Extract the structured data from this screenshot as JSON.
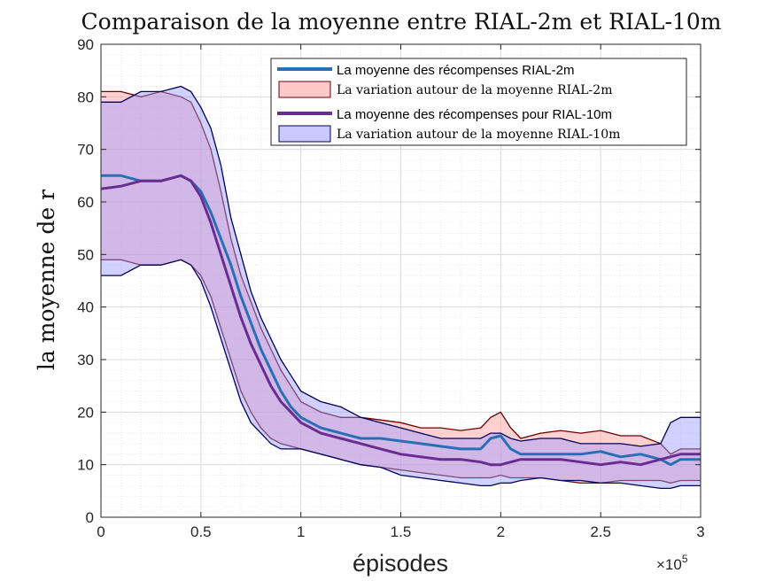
{
  "chart_data": {
    "type": "area",
    "title": "Comparaison de la moyenne entre RIAL-2m et RIAL-10m",
    "xlabel": "épisodes",
    "ylabel": "la moyenne de r",
    "x_exponent_label": {
      "base": "×10",
      "exp": "5"
    },
    "xlim": [
      0,
      300000
    ],
    "ylim": [
      0,
      90
    ],
    "xticks": [
      0,
      50000,
      100000,
      150000,
      200000,
      250000,
      300000
    ],
    "xtick_labels": [
      "0",
      "0.5",
      "1",
      "1.5",
      "2",
      "2.5",
      "3"
    ],
    "yticks": [
      0,
      10,
      20,
      30,
      40,
      50,
      60,
      70,
      80,
      90
    ],
    "ytick_labels": [
      "0",
      "10",
      "20",
      "30",
      "40",
      "50",
      "60",
      "70",
      "80",
      "90"
    ],
    "grid": true,
    "minor_grid": true,
    "legend_position": "top-right",
    "x": [
      0,
      10000,
      20000,
      30000,
      40000,
      45000,
      50000,
      55000,
      60000,
      65000,
      70000,
      75000,
      80000,
      85000,
      90000,
      95000,
      100000,
      110000,
      120000,
      130000,
      140000,
      150000,
      160000,
      170000,
      180000,
      190000,
      195000,
      200000,
      205000,
      210000,
      220000,
      230000,
      240000,
      250000,
      260000,
      270000,
      280000,
      285000,
      290000,
      300000
    ],
    "series": [
      {
        "name": "La moyenne des récompenses RIAL-2m",
        "kind": "line",
        "color": "#2a6fb5",
        "values": [
          65,
          65,
          64,
          64,
          65,
          64,
          62,
          58,
          53,
          48,
          42,
          37,
          32,
          28,
          24,
          21,
          19,
          17,
          16,
          15,
          15,
          14.5,
          14,
          13.5,
          13,
          13,
          15,
          15.5,
          13,
          12,
          12,
          12,
          12,
          12.5,
          11.5,
          12,
          11,
          10,
          11,
          11
        ]
      },
      {
        "name": "La variation autour de la moyenne RIAL-2m",
        "kind": "band",
        "color": "#ff9999",
        "edge": "#6a0000",
        "upper": [
          81,
          81,
          80,
          81,
          80,
          79,
          75,
          70,
          62,
          53,
          46,
          41,
          36,
          32,
          28,
          25,
          22,
          20,
          19,
          19,
          18.5,
          18,
          17,
          17,
          16.5,
          17,
          19,
          20,
          17,
          15,
          16,
          16.5,
          16,
          16.5,
          15.5,
          15.5,
          14,
          12,
          13,
          13
        ],
        "lower": [
          49,
          49,
          48,
          48,
          49,
          48,
          46,
          42,
          36,
          30,
          24,
          20,
          17,
          15,
          14,
          13.5,
          13,
          12,
          11,
          10,
          9.5,
          9,
          8.5,
          8,
          7.5,
          7.5,
          7.5,
          8,
          7.5,
          7.5,
          7.5,
          7,
          6.5,
          6.5,
          7,
          7,
          7,
          6.5,
          7,
          7
        ]
      },
      {
        "name": "La moyenne des récompenses pour RIAL-10m",
        "kind": "line",
        "color": "#6a2c91",
        "values": [
          62.5,
          63,
          64,
          64,
          65,
          64,
          61,
          56,
          50,
          44,
          38,
          33,
          29,
          25,
          22,
          20,
          18,
          16,
          15,
          14,
          13,
          12,
          11.5,
          11,
          11,
          10.5,
          10,
          10,
          10.5,
          11,
          11,
          11,
          10.5,
          10,
          10.5,
          10,
          11,
          11.5,
          12,
          12
        ]
      },
      {
        "name": "La variation autour de la moyenne RIAL-10m",
        "kind": "band",
        "color": "#9999ff",
        "edge": "#00005a",
        "upper": [
          79,
          79,
          81,
          81,
          82,
          81,
          78,
          74,
          67,
          57,
          50,
          43,
          38,
          34,
          30,
          27,
          24,
          22,
          21,
          19,
          18,
          17,
          16,
          15,
          15,
          15,
          16,
          16,
          15,
          14.5,
          15,
          15,
          14,
          14,
          14,
          13.5,
          14,
          18,
          19,
          19
        ],
        "lower": [
          46,
          46,
          48,
          48,
          49,
          48,
          45,
          40,
          34,
          28,
          22,
          18,
          16,
          14,
          13,
          13,
          13,
          12,
          11,
          10,
          9.5,
          8,
          7.5,
          7,
          6.5,
          6,
          6,
          6.5,
          6.5,
          7,
          7.5,
          7,
          7,
          6.5,
          6.5,
          6,
          5.5,
          5.5,
          6,
          6
        ]
      }
    ],
    "legend": [
      {
        "label": "La moyenne des récompenses RIAL-2m",
        "style": "line",
        "color": "#2a6fb5"
      },
      {
        "label": "La variation autour de la moyenne RIAL-2m",
        "style": "patch",
        "color": "#ffc9c9",
        "edge": "#6a0000"
      },
      {
        "label": "La moyenne des récompenses pour RIAL-10m",
        "style": "line",
        "color": "#6a2c91"
      },
      {
        "label": "La variation autour de la moyenne RIAL-10m",
        "style": "patch",
        "color": "#c9c9ff",
        "edge": "#00005a"
      }
    ]
  }
}
